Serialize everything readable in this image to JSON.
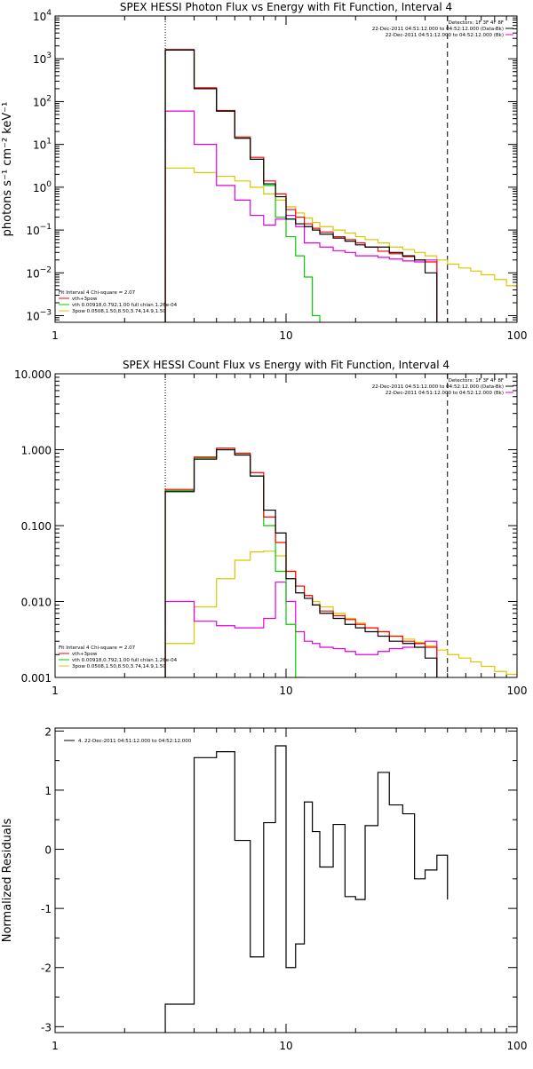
{
  "chart_data": [
    {
      "type": "line",
      "title": "SPEX HESSI Photon Flux vs Energy with Fit Function, Interval 4",
      "xlabel": "",
      "ylabel": "photons s⁻¹ cm⁻² keV⁻¹",
      "xscale": "log",
      "yscale": "log",
      "xlim": [
        1,
        100
      ],
      "ylim": [
        0.0007,
        10000
      ],
      "xticks": [
        1,
        10,
        100
      ],
      "xtick_labels": [
        "1",
        "10",
        "100"
      ],
      "yticks": [
        0.001,
        0.01,
        0.1,
        1,
        10,
        100,
        1000,
        10000
      ],
      "ytick_labels": [
        "10⁻³",
        "10⁻²",
        "10⁻¹",
        "10⁰",
        "10¹",
        "10²",
        "10³",
        "10⁴"
      ],
      "vlines": [
        {
          "x": 3,
          "style": "dotted"
        },
        {
          "x": 50,
          "style": "dashed"
        }
      ],
      "top_legend": [
        {
          "text": "Detectors: 1F 3F 4F 8F",
          "color": "#000000",
          "swatch": false
        },
        {
          "text": "22-Dec-2011 04:51:12.000 to 04:52:12.000 (Data-Bk)",
          "color": "#000000",
          "swatch": true
        },
        {
          "text": "22-Dec-2011 04:51:12.000 to 04:52:12.000 (Bk)",
          "color": "#e000e0",
          "swatch": true
        }
      ],
      "bottom_legend": {
        "header": "Fit Interval  4    Chi-square = 2.07",
        "items": [
          {
            "text": "vth+3pow",
            "color": "#ff0000"
          },
          {
            "text": "vth 0.00918,0.792,1.00  full chian 1.26e-04",
            "color": "#00cc00"
          },
          {
            "text": "3pow 0.0508,1.50,8.50,3.74,14.9,1.50",
            "color": "#d8c800"
          }
        ]
      },
      "edges": [
        3,
        4,
        5,
        6,
        7,
        8,
        9,
        10,
        11,
        12,
        13,
        14,
        16,
        18,
        20,
        22,
        25,
        28,
        32,
        36,
        40,
        45,
        50,
        56,
        63,
        70,
        80,
        90,
        100
      ],
      "series": [
        {
          "key": "data",
          "color": "#000000",
          "lastEdge": 22,
          "values": [
            1600,
            200,
            60,
            14,
            4.5,
            1.2,
            0.6,
            0.18,
            0.14,
            0.12,
            0.1,
            0.08,
            0.065,
            0.055,
            0.045,
            0.04,
            0.04,
            0.03,
            0.025,
            0.02,
            0.01
          ]
        },
        {
          "key": "model",
          "color": "#ff0000",
          "lastEdge": 22,
          "values": [
            1650,
            210,
            62,
            15,
            5,
            1.4,
            0.7,
            0.3,
            0.2,
            0.14,
            0.11,
            0.09,
            0.07,
            0.06,
            0.05,
            0.04,
            0.032,
            0.028,
            0.024,
            0.02,
            0.018
          ]
        },
        {
          "key": "vth",
          "color": "#00cc00",
          "lastEdge": 13,
          "values": [
            1600,
            200,
            60,
            14,
            4.5,
            1.1,
            0.2,
            0.07,
            0.025,
            0.008,
            0.001
          ]
        },
        {
          "key": "bk",
          "color": "#e000e0",
          "lastEdge": 22,
          "values": [
            60,
            10,
            1.1,
            0.5,
            0.22,
            0.13,
            0.18,
            0.22,
            0.12,
            0.05,
            0.05,
            0.04,
            0.033,
            0.03,
            0.025,
            0.025,
            0.023,
            0.021,
            0.019,
            0.018,
            0.02
          ]
        },
        {
          "key": "pow",
          "color": "#d8c800",
          "lastEdge": 28,
          "values": [
            2.8,
            2.2,
            1.8,
            1.4,
            1.0,
            0.7,
            0.5,
            0.35,
            0.25,
            0.19,
            0.15,
            0.12,
            0.1,
            0.085,
            0.07,
            0.06,
            0.05,
            0.04,
            0.035,
            0.03,
            0.025,
            0.02,
            0.016,
            0.013,
            0.011,
            0.009,
            0.007,
            0.005
          ]
        }
      ]
    },
    {
      "type": "line",
      "title": "SPEX HESSI Count Flux vs Energy with Fit Function, Interval 4",
      "xlabel": "",
      "ylabel": "",
      "xscale": "log",
      "yscale": "log",
      "xlim": [
        1,
        100
      ],
      "ylim": [
        0.001,
        10
      ],
      "xticks": [
        1,
        10,
        100
      ],
      "xtick_labels": [
        "1",
        "10",
        "100"
      ],
      "yticks": [
        0.001,
        0.01,
        0.1,
        1,
        10
      ],
      "ytick_labels": [
        "0.001",
        "0.010",
        "0.100",
        "1.000",
        "10.000"
      ],
      "vlines": [
        {
          "x": 3,
          "style": "dotted"
        },
        {
          "x": 50,
          "style": "dashed"
        }
      ],
      "top_legend": [
        {
          "text": "Detectors: 1F 3F 4F 8F",
          "color": "#000000",
          "swatch": false
        },
        {
          "text": "22-Dec-2011 04:51:12.000 to 04:52:12.000 (Data-Bk)",
          "color": "#000000",
          "swatch": true
        },
        {
          "text": "22-Dec-2011 04:51:12.000 to 04:52:12.000 (Bk)",
          "color": "#e000e0",
          "swatch": true
        }
      ],
      "bottom_legend": {
        "header": "Fit Interval  4    Chi-square = 2.07",
        "items": [
          {
            "text": "vth+3pow",
            "color": "#ff0000"
          },
          {
            "text": "vth 0.00918,0.792,1.00  full chian 1.26e-04",
            "color": "#00cc00"
          },
          {
            "text": "3pow 0.0508,1.50,8.50,3.74,14.9,1.50",
            "color": "#d8c800"
          }
        ]
      },
      "edges": [
        3,
        4,
        5,
        6,
        7,
        8,
        9,
        10,
        11,
        12,
        13,
        14,
        16,
        18,
        20,
        22,
        25,
        28,
        32,
        36,
        40,
        45,
        50,
        56,
        63,
        70,
        80,
        90,
        100
      ],
      "series": [
        {
          "key": "data",
          "color": "#000000",
          "lastEdge": 50,
          "values": [
            0.28,
            0.75,
            1.0,
            0.85,
            0.45,
            0.16,
            0.08,
            0.02,
            0.013,
            0.011,
            0.009,
            0.007,
            0.006,
            0.005,
            0.0045,
            0.004,
            0.0035,
            0.003,
            0.0028,
            0.0025,
            0.0018
          ]
        },
        {
          "key": "model",
          "color": "#ff0000",
          "lastEdge": 50,
          "values": [
            0.3,
            0.8,
            1.05,
            0.9,
            0.5,
            0.13,
            0.06,
            0.025,
            0.016,
            0.012,
            0.009,
            0.0075,
            0.0065,
            0.0058,
            0.005,
            0.0045,
            0.004,
            0.0035,
            0.003,
            0.0028,
            0.0025
          ]
        },
        {
          "key": "vth",
          "color": "#00cc00",
          "lastEdge": 12,
          "values": [
            0.29,
            0.78,
            1.0,
            0.86,
            0.45,
            0.1,
            0.025,
            0.005,
            0.001
          ]
        },
        {
          "key": "bk",
          "color": "#e000e0",
          "lastEdge": 50,
          "values": [
            0.01,
            0.0055,
            0.0048,
            0.0045,
            0.0045,
            0.006,
            0.018,
            0.01,
            0.004,
            0.003,
            0.0028,
            0.0025,
            0.0024,
            0.0022,
            0.002,
            0.002,
            0.0022,
            0.0024,
            0.0025,
            0.0028,
            0.003
          ]
        },
        {
          "key": "pow",
          "color": "#d8c800",
          "lastEdge": 100,
          "values": [
            0.0028,
            0.0085,
            0.02,
            0.035,
            0.045,
            0.046,
            0.04,
            0.025,
            0.016,
            0.012,
            0.01,
            0.0085,
            0.007,
            0.006,
            0.0052,
            0.0045,
            0.004,
            0.0035,
            0.0032,
            0.0029,
            0.0026,
            0.0023,
            0.002,
            0.0018,
            0.0016,
            0.0014,
            0.0012,
            0.0011
          ]
        }
      ]
    },
    {
      "type": "line",
      "title": "",
      "xlabel": "",
      "ylabel": "Normalized Residuals",
      "xscale": "log",
      "yscale": "linear",
      "xlim": [
        1,
        100
      ],
      "ylim": [
        -3.1,
        2.05
      ],
      "xticks": [
        1,
        10,
        100
      ],
      "xtick_labels": [
        "1",
        "10",
        "100"
      ],
      "yticks": [
        -3,
        -2,
        -1,
        0,
        1,
        2
      ],
      "ytick_labels": [
        "-3",
        "-2",
        "-1",
        "0",
        "1",
        "2"
      ],
      "vlines": [],
      "top_legend": [],
      "bottom_legend": null,
      "legend": {
        "text": "4. 22-Dec-2011 04:51:12.000 to 04:52:12.000",
        "color": "#000000"
      },
      "edges": [
        3,
        4,
        5,
        6,
        7,
        8,
        9,
        10,
        11,
        12,
        13,
        14,
        16,
        18,
        20,
        22,
        25,
        28,
        32,
        36,
        40,
        45,
        50
      ],
      "series": [
        {
          "key": "resid",
          "color": "#000000",
          "lastEdge": 50,
          "values": [
            -2.62,
            1.55,
            1.65,
            0.15,
            -1.82,
            0.45,
            1.75,
            -2.0,
            -1.6,
            0.8,
            0.3,
            -0.3,
            0.42,
            -0.8,
            -0.85,
            0.4,
            1.3,
            0.75,
            0.6,
            -0.5,
            -0.35,
            -0.1,
            -0.85
          ]
        }
      ]
    }
  ]
}
